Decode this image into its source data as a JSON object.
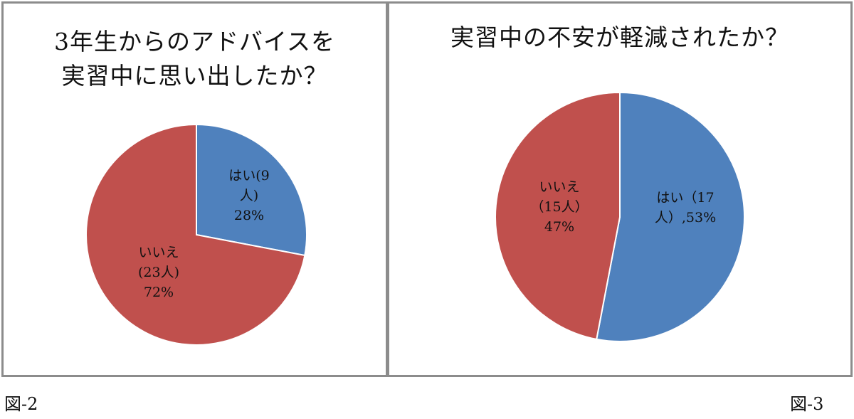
{
  "chart_data": [
    {
      "type": "pie",
      "title_lines": [
        "3年生からのアドバイスを",
        "実習中に思い出したか？"
      ],
      "slices": [
        {
          "label_lines": [
            "はい(9",
            "人)",
            "28%"
          ],
          "value": 28,
          "count": 9,
          "color": "#4f81bd"
        },
        {
          "label_lines": [
            "いいえ",
            "(23人)",
            "72%"
          ],
          "value": 72,
          "count": 23,
          "color": "#c0504d"
        }
      ]
    },
    {
      "type": "pie",
      "title_lines": [
        "実習中の不安が軽減されたか？"
      ],
      "slices": [
        {
          "label_lines": [
            "はい（17",
            "人）,53%"
          ],
          "value": 53,
          "count": 17,
          "color": "#4f81bd"
        },
        {
          "label_lines": [
            "いいえ",
            "（15人）",
            "47%"
          ],
          "value": 47,
          "count": 15,
          "color": "#c0504d"
        }
      ]
    }
  ],
  "captions": {
    "left": "図-2",
    "right": "図-3"
  }
}
